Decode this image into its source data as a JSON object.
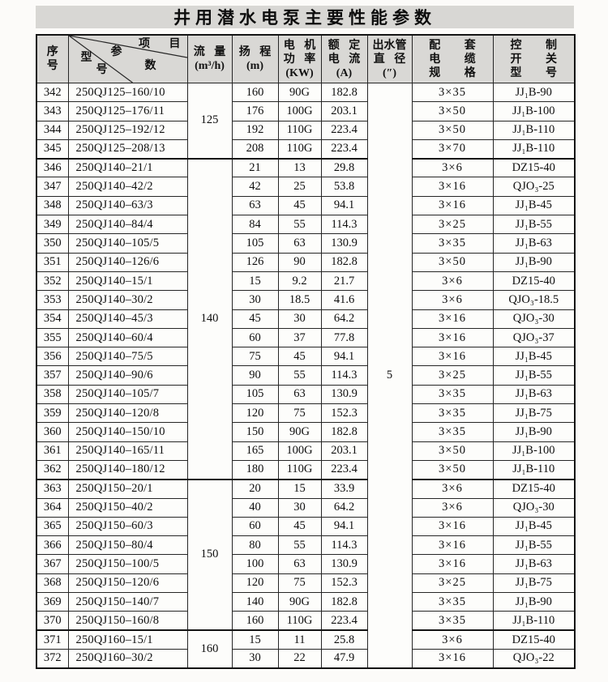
{
  "title": "井用潜水电泵主要性能参数",
  "table": {
    "header": {
      "serial": "序\n号",
      "diagonal": {
        "top_right": "项 目",
        "param_a": "参",
        "param_b": "数",
        "model_a": "型",
        "model_b": "号"
      },
      "flow": "流 量\n(m³/h)",
      "head": "扬 程\n(m)",
      "power": "电 机\n功 率\n(KW)",
      "current": "额 定\n电 流\n(A)",
      "outlet": "出水管\n直 径\n(″)",
      "cable": "配 套\n电 缆\n规 格",
      "switch": "控 制\n开 关\n型 号"
    },
    "flow_groups": [
      {
        "value": "125",
        "span": 4
      },
      {
        "value": "140",
        "span": 17
      },
      {
        "value": "150",
        "span": 8
      },
      {
        "value": "160",
        "span": 2
      }
    ],
    "outlet": {
      "value": "5",
      "span": 31
    },
    "rows": [
      {
        "no": "342",
        "model": "250QJ125–160/10",
        "head": "160",
        "power": "90G",
        "current": "182.8",
        "cable": "3×35",
        "switch": "JJ₁B-90"
      },
      {
        "no": "343",
        "model": "250QJ125–176/11",
        "head": "176",
        "power": "100G",
        "current": "203.1",
        "cable": "3×50",
        "switch": "JJ₁B-100"
      },
      {
        "no": "344",
        "model": "250QJ125–192/12",
        "head": "192",
        "power": "110G",
        "current": "223.4",
        "cable": "3×50",
        "switch": "JJ₁B-110"
      },
      {
        "no": "345",
        "model": "250QJ125–208/13",
        "head": "208",
        "power": "110G",
        "current": "223.4",
        "cable": "3×70",
        "switch": "JJ₁B-110"
      },
      {
        "no": "346",
        "model": "250QJ140–21/1",
        "head": "21",
        "power": "13",
        "current": "29.8",
        "cable": "3×6",
        "switch": "DZ15-40"
      },
      {
        "no": "347",
        "model": "250QJ140–42/2",
        "head": "42",
        "power": "25",
        "current": "53.8",
        "cable": "3×16",
        "switch": "QJO₃-25"
      },
      {
        "no": "348",
        "model": "250QJ140–63/3",
        "head": "63",
        "power": "45",
        "current": "94.1",
        "cable": "3×16",
        "switch": "JJ₁B-45"
      },
      {
        "no": "349",
        "model": "250QJ140–84/4",
        "head": "84",
        "power": "55",
        "current": "114.3",
        "cable": "3×25",
        "switch": "JJ₁B-55"
      },
      {
        "no": "350",
        "model": "250QJ140–105/5",
        "head": "105",
        "power": "63",
        "current": "130.9",
        "cable": "3×35",
        "switch": "JJ₁B-63"
      },
      {
        "no": "351",
        "model": "250QJ140–126/6",
        "head": "126",
        "power": "90",
        "current": "182.8",
        "cable": "3×50",
        "switch": "JJ₁B-90"
      },
      {
        "no": "352",
        "model": "250QJ140–15/1",
        "head": "15",
        "power": "9.2",
        "current": "21.7",
        "cable": "3×6",
        "switch": "DZ15-40"
      },
      {
        "no": "353",
        "model": "250QJ140–30/2",
        "head": "30",
        "power": "18.5",
        "current": "41.6",
        "cable": "3×6",
        "switch": "QJO₃-18.5"
      },
      {
        "no": "354",
        "model": "250QJ140–45/3",
        "head": "45",
        "power": "30",
        "current": "64.2",
        "cable": "3×16",
        "switch": "QJO₃-30"
      },
      {
        "no": "355",
        "model": "250QJ140–60/4",
        "head": "60",
        "power": "37",
        "current": "77.8",
        "cable": "3×16",
        "switch": "QJO₃-37"
      },
      {
        "no": "356",
        "model": "250QJ140–75/5",
        "head": "75",
        "power": "45",
        "current": "94.1",
        "cable": "3×16",
        "switch": "JJ₁B-45"
      },
      {
        "no": "357",
        "model": "250QJ140–90/6",
        "head": "90",
        "power": "55",
        "current": "114.3",
        "cable": "3×25",
        "switch": "JJ₁B-55"
      },
      {
        "no": "358",
        "model": "250QJ140–105/7",
        "head": "105",
        "power": "63",
        "current": "130.9",
        "cable": "3×35",
        "switch": "JJ₁B-63"
      },
      {
        "no": "359",
        "model": "250QJ140–120/8",
        "head": "120",
        "power": "75",
        "current": "152.3",
        "cable": "3×35",
        "switch": "JJ₁B-75"
      },
      {
        "no": "360",
        "model": "250QJ140–150/10",
        "head": "150",
        "power": "90G",
        "current": "182.8",
        "cable": "3×35",
        "switch": "JJ₁B-90"
      },
      {
        "no": "361",
        "model": "250QJ140–165/11",
        "head": "165",
        "power": "100G",
        "current": "203.1",
        "cable": "3×50",
        "switch": "JJ₁B-100"
      },
      {
        "no": "362",
        "model": "250QJ140–180/12",
        "head": "180",
        "power": "110G",
        "current": "223.4",
        "cable": "3×50",
        "switch": "JJ₁B-110"
      },
      {
        "no": "363",
        "model": "250QJ150–20/1",
        "head": "20",
        "power": "15",
        "current": "33.9",
        "cable": "3×6",
        "switch": "DZ15-40"
      },
      {
        "no": "364",
        "model": "250QJ150–40/2",
        "head": "40",
        "power": "30",
        "current": "64.2",
        "cable": "3×6",
        "switch": "QJO₃-30"
      },
      {
        "no": "365",
        "model": "250QJ150–60/3",
        "head": "60",
        "power": "45",
        "current": "94.1",
        "cable": "3×16",
        "switch": "JJ₁B-45"
      },
      {
        "no": "366",
        "model": "250QJ150–80/4",
        "head": "80",
        "power": "55",
        "current": "114.3",
        "cable": "3×16",
        "switch": "JJ₁B-55"
      },
      {
        "no": "367",
        "model": "250QJ150–100/5",
        "head": "100",
        "power": "63",
        "current": "130.9",
        "cable": "3×16",
        "switch": "JJ₁B-63"
      },
      {
        "no": "368",
        "model": "250QJ150–120/6",
        "head": "120",
        "power": "75",
        "current": "152.3",
        "cable": "3×25",
        "switch": "JJ₁B-75"
      },
      {
        "no": "369",
        "model": "250QJ150–140/7",
        "head": "140",
        "power": "90G",
        "current": "182.8",
        "cable": "3×35",
        "switch": "JJ₁B-90"
      },
      {
        "no": "370",
        "model": "250QJ150–160/8",
        "head": "160",
        "power": "110G",
        "current": "223.4",
        "cable": "3×35",
        "switch": "JJ₁B-110"
      },
      {
        "no": "371",
        "model": "250QJ160–15/1",
        "head": "15",
        "power": "11",
        "current": "25.8",
        "cable": "3×6",
        "switch": "DZ15-40"
      },
      {
        "no": "372",
        "model": "250QJ160–30/2",
        "head": "30",
        "power": "22",
        "current": "47.9",
        "cable": "3×16",
        "switch": "QJO₃-22"
      }
    ]
  }
}
